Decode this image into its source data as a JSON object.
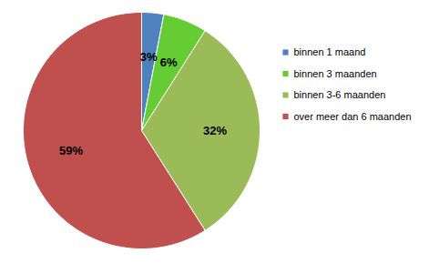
{
  "chart_data": {
    "type": "pie",
    "categories": [
      "binnen 1 maand",
      "binnen 3 maanden",
      "binnen 3-6 maanden",
      "over meer dan 6 maanden"
    ],
    "values": [
      3,
      6,
      32,
      59
    ],
    "value_labels": [
      "3%",
      "6%",
      "32%",
      "59%"
    ],
    "colors": [
      "#4f81bd",
      "#66cc33",
      "#9bbb59",
      "#c0504d"
    ],
    "data_labels": true,
    "legend": "right"
  }
}
